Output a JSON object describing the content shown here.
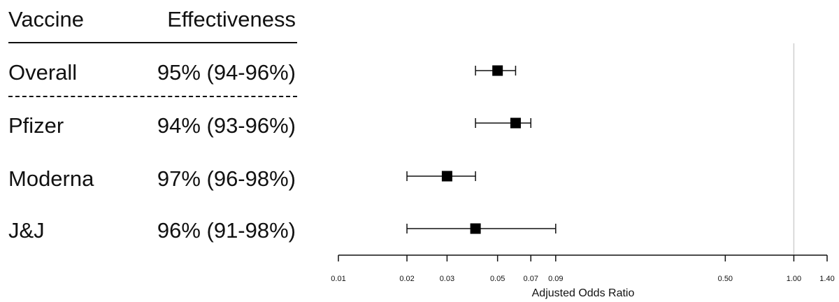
{
  "table": {
    "header_vaccine": "Vaccine",
    "header_effectiveness": "Effectiveness"
  },
  "chart_data": {
    "type": "forest",
    "xlabel": "Adjusted Odds Ratio",
    "xscale": "log",
    "xlim": [
      0.01,
      1.4
    ],
    "xticks": [
      "0.01",
      "0.02",
      "0.03",
      "0.05",
      "0.07",
      "0.09",
      "0.50",
      "1.00",
      "1.40"
    ],
    "xtick_values": [
      0.01,
      0.02,
      0.03,
      0.05,
      0.07,
      0.09,
      0.5,
      1.0,
      1.4
    ],
    "reference_line": 1.0,
    "rows": [
      {
        "label": "Overall",
        "effectiveness": "95% (94-96%)",
        "or": 0.05,
        "lower": 0.04,
        "upper": 0.06
      },
      {
        "label": "Pfizer",
        "effectiveness": "94% (93-96%)",
        "or": 0.06,
        "lower": 0.04,
        "upper": 0.07
      },
      {
        "label": "Moderna",
        "effectiveness": "97% (96-98%)",
        "or": 0.03,
        "lower": 0.02,
        "upper": 0.04
      },
      {
        "label": "J&J",
        "effectiveness": "96% (91-98%)",
        "or": 0.04,
        "lower": 0.02,
        "upper": 0.09
      }
    ]
  }
}
